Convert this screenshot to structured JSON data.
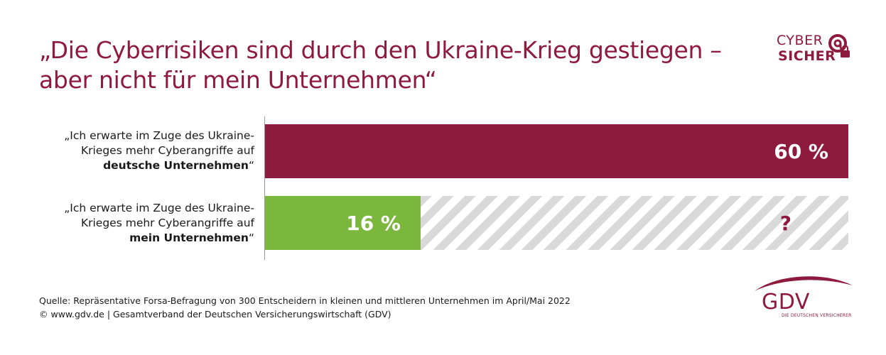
{
  "title": {
    "line1": "„Die Cyberrisiken sind durch den Ukraine-Krieg gestiegen –",
    "line2": "aber nicht für mein Unternehmen“"
  },
  "logo": {
    "line1": "CYBER",
    "line2": "SICHER"
  },
  "colors": {
    "accent": "#8e1a3d",
    "green": "#7ab73c",
    "hatch": "#d9d9d9"
  },
  "chart_data": {
    "type": "bar",
    "orientation": "horizontal",
    "xlim": [
      0,
      60
    ],
    "categories": [
      {
        "line1": "„Ich erwarte im Zuge des Ukraine-",
        "line2": "Krieges mehr Cyberangriffe auf",
        "line3_bold": "deutsche Unternehmen",
        "close": "“"
      },
      {
        "line1": "„Ich erwarte im Zuge des Ukraine-",
        "line2": "Krieges mehr Cyberangriffe auf",
        "line3_bold": "mein Unternehmen",
        "close": "“"
      }
    ],
    "values": [
      60,
      16
    ],
    "value_labels": [
      "60 %",
      "16 %"
    ],
    "remainder_annotation": "?"
  },
  "footer": {
    "source": "Quelle: Repräsentative Forsa-Befragung von 300 Entscheidern in kleinen und mittleren Unternehmen im April/Mai 2022",
    "copyright": "© www.gdv.de | Gesamtverband der Deutschen Versicherungswirtschaft (GDV)"
  },
  "gdv_logo": {
    "word": "GDV",
    "tagline": "DIE DEUTSCHEN VERSICHERER"
  }
}
